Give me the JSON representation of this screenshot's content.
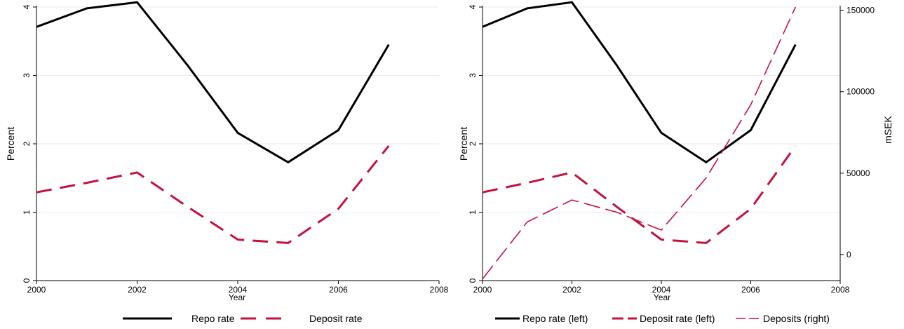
{
  "chart_data": [
    {
      "type": "line",
      "xlabel": "Year",
      "ylabel": "Percent",
      "xlim": [
        2000,
        2008
      ],
      "ylim": [
        0,
        4
      ],
      "x_ticks": [
        "2000",
        "2002",
        "2004",
        "2006",
        "2008"
      ],
      "y_ticks": [
        "0",
        "1",
        "2",
        "3",
        "4"
      ],
      "grid": true,
      "legend_position": "bottom",
      "x": [
        2000,
        2001,
        2002,
        2003,
        2004,
        2005,
        2006,
        2007
      ],
      "series": [
        {
          "name": "Repo rate",
          "axis": "left",
          "color": "#000000",
          "style": "solid",
          "values": [
            3.71,
            3.98,
            4.07,
            3.15,
            2.16,
            1.73,
            2.2,
            3.45
          ]
        },
        {
          "name": "Deposit rate",
          "axis": "left",
          "color": "#c4123f",
          "style": "dashed",
          "values": [
            1.29,
            1.43,
            1.58,
            1.08,
            0.6,
            0.55,
            1.05,
            1.97
          ]
        }
      ]
    },
    {
      "type": "line",
      "xlabel": "Year",
      "ylabel": "Percent",
      "y2label": "mSEK",
      "xlim": [
        2000,
        2008
      ],
      "ylim": [
        0,
        4
      ],
      "y2lim": [
        -16000,
        152000
      ],
      "x_ticks": [
        "2000",
        "2002",
        "2004",
        "2006",
        "2008"
      ],
      "y_ticks": [
        "0",
        "1",
        "2",
        "3",
        "4"
      ],
      "y2_ticks": [
        "0",
        "50000",
        "100000",
        "150000"
      ],
      "grid": true,
      "legend_position": "bottom",
      "x": [
        2000,
        2001,
        2002,
        2003,
        2004,
        2005,
        2006,
        2007
      ],
      "series": [
        {
          "name": "Repo rate (left)",
          "axis": "left",
          "color": "#000000",
          "style": "solid",
          "values": [
            3.71,
            3.98,
            4.07,
            3.15,
            2.16,
            1.73,
            2.2,
            3.45
          ]
        },
        {
          "name": "Deposit rate (left)",
          "axis": "left",
          "color": "#c4123f",
          "style": "dashed",
          "values": [
            1.29,
            1.43,
            1.58,
            1.08,
            0.6,
            0.55,
            1.05,
            1.97
          ]
        },
        {
          "name": "Deposits (right)",
          "axis": "right",
          "color": "#c4123f",
          "style": "longdash-thin",
          "values": [
            -15000,
            20000,
            33500,
            26000,
            15000,
            47000,
            92000,
            152000
          ]
        }
      ]
    }
  ]
}
